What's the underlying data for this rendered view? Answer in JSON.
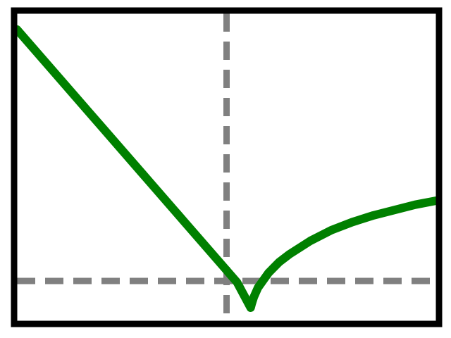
{
  "chart_data": {
    "type": "line",
    "title": "",
    "xlabel": "",
    "ylabel": "",
    "xlim": [
      -1,
      1
    ],
    "ylim": [
      -0.15,
      1.0
    ],
    "grid": false,
    "legend": "none",
    "reference_lines": [
      {
        "orientation": "vertical",
        "value": 0,
        "style": "dashed",
        "color": "#808080"
      },
      {
        "orientation": "horizontal",
        "value": 0,
        "style": "dashed",
        "color": "#808080"
      }
    ],
    "series": [
      {
        "color": "#008000",
        "x": [
          -1.0,
          -0.8,
          -0.6,
          -0.4,
          -0.2,
          0.0,
          0.05,
          0.115,
          0.12,
          0.13,
          0.15,
          0.2,
          0.25,
          0.3,
          0.4,
          0.5,
          0.6,
          0.7,
          0.8,
          0.9,
          1.0
        ],
        "y": [
          0.94,
          0.76,
          0.58,
          0.4,
          0.22,
          0.04,
          -0.005,
          -0.1,
          -0.085,
          -0.06,
          -0.025,
          0.03,
          0.07,
          0.1,
          0.15,
          0.19,
          0.22,
          0.245,
          0.265,
          0.285,
          0.3
        ]
      }
    ]
  }
}
